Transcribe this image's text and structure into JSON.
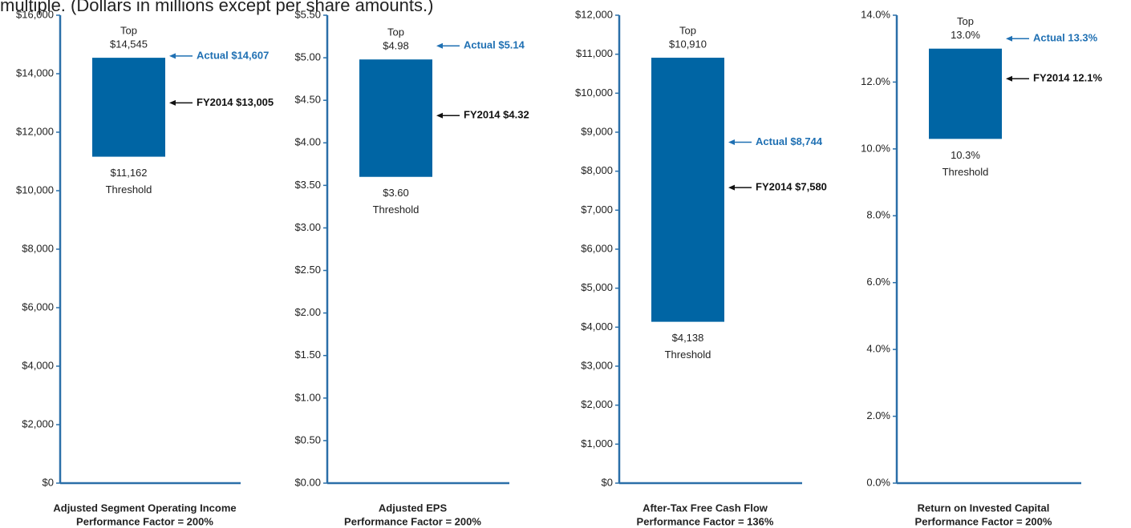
{
  "note": "multiple. (Dollars in millions except per share amounts.)",
  "chart_data": [
    {
      "type": "range-bar",
      "title": "Adjusted Segment Operating Income",
      "subtitle": "Performance Factor = 200%",
      "color": "#0065a4",
      "categories": [
        "Threshold",
        "Top"
      ],
      "values": [
        11162,
        14545
      ],
      "value_labels": [
        "$11,162",
        "$14,545"
      ],
      "annotations": [
        {
          "label": "Actual $14,607",
          "value": 14607,
          "color": "#1f70b3"
        },
        {
          "label": "FY2014 $13,005",
          "value": 13005,
          "color": "#111111"
        }
      ],
      "ylim": [
        0,
        16000
      ],
      "yticks": [
        {
          "value": 0,
          "label": "$0"
        },
        {
          "value": 2000,
          "label": "$2,000"
        },
        {
          "value": 4000,
          "label": "$4,000"
        },
        {
          "value": 6000,
          "label": "$6,000"
        },
        {
          "value": 8000,
          "label": "$8,000"
        },
        {
          "value": 10000,
          "label": "$10,000"
        },
        {
          "value": 12000,
          "label": "$12,000"
        },
        {
          "value": 14000,
          "label": "$14,000"
        },
        {
          "value": 16000,
          "label": "$16,000"
        }
      ]
    },
    {
      "type": "range-bar",
      "title": "Adjusted EPS",
      "subtitle": "Performance Factor = 200%",
      "color": "#0065a4",
      "categories": [
        "Threshold",
        "Top"
      ],
      "values": [
        3.6,
        4.98
      ],
      "value_labels": [
        "$3.60",
        "$4.98"
      ],
      "annotations": [
        {
          "label": "Actual $5.14",
          "value": 5.14,
          "color": "#1f70b3"
        },
        {
          "label": "FY2014 $4.32",
          "value": 4.32,
          "color": "#111111"
        }
      ],
      "ylim": [
        0,
        5.5
      ],
      "yticks": [
        {
          "value": 0,
          "label": "$0.00"
        },
        {
          "value": 0.5,
          "label": "$0.50"
        },
        {
          "value": 1,
          "label": "$1.00"
        },
        {
          "value": 1.5,
          "label": "$1.50"
        },
        {
          "value": 2,
          "label": "$2.00"
        },
        {
          "value": 2.5,
          "label": "$2.50"
        },
        {
          "value": 3,
          "label": "$3.00"
        },
        {
          "value": 3.5,
          "label": "$3.50"
        },
        {
          "value": 4,
          "label": "$4.00"
        },
        {
          "value": 4.5,
          "label": "$4.50"
        },
        {
          "value": 5,
          "label": "$5.00"
        },
        {
          "value": 5.5,
          "label": "$5.50"
        }
      ]
    },
    {
      "type": "range-bar",
      "title": "After-Tax Free Cash Flow",
      "subtitle": "Performance Factor = 136%",
      "color": "#0065a4",
      "categories": [
        "Threshold",
        "Top"
      ],
      "values": [
        4138,
        10910
      ],
      "value_labels": [
        "$4,138",
        "$10,910"
      ],
      "annotations": [
        {
          "label": "Actual $8,744",
          "value": 8744,
          "color": "#1f70b3"
        },
        {
          "label": "FY2014 $7,580",
          "value": 7580,
          "color": "#111111"
        }
      ],
      "ylim": [
        0,
        12000
      ],
      "yticks": [
        {
          "value": 0,
          "label": "$0"
        },
        {
          "value": 1000,
          "label": "$1,000"
        },
        {
          "value": 2000,
          "label": "$2,000"
        },
        {
          "value": 3000,
          "label": "$3,000"
        },
        {
          "value": 4000,
          "label": "$4,000"
        },
        {
          "value": 5000,
          "label": "$5,000"
        },
        {
          "value": 6000,
          "label": "$6,000"
        },
        {
          "value": 7000,
          "label": "$7,000"
        },
        {
          "value": 8000,
          "label": "$8,000"
        },
        {
          "value": 9000,
          "label": "$9,000"
        },
        {
          "value": 10000,
          "label": "$10,000"
        },
        {
          "value": 11000,
          "label": "$11,000"
        },
        {
          "value": 12000,
          "label": "$12,000"
        }
      ]
    },
    {
      "type": "range-bar",
      "title": "Return on Invested Capital",
      "subtitle": "Performance Factor = 200%",
      "color": "#0065a4",
      "categories": [
        "Threshold",
        "Top"
      ],
      "values": [
        10.3,
        13.0
      ],
      "value_labels": [
        "10.3%",
        "13.0%"
      ],
      "annotations": [
        {
          "label": "Actual 13.3%",
          "value": 13.3,
          "color": "#1f70b3"
        },
        {
          "label": "FY2014 12.1%",
          "value": 12.1,
          "color": "#111111"
        }
      ],
      "ylim": [
        0,
        14
      ],
      "yticks": [
        {
          "value": 0,
          "label": "0.0%"
        },
        {
          "value": 2,
          "label": "2.0%"
        },
        {
          "value": 4,
          "label": "4.0%"
        },
        {
          "value": 6,
          "label": "6.0%"
        },
        {
          "value": 8,
          "label": "8.0%"
        },
        {
          "value": 10,
          "label": "10.0%"
        },
        {
          "value": 12,
          "label": "12.0%"
        },
        {
          "value": 14,
          "label": "14.0%"
        }
      ]
    }
  ]
}
